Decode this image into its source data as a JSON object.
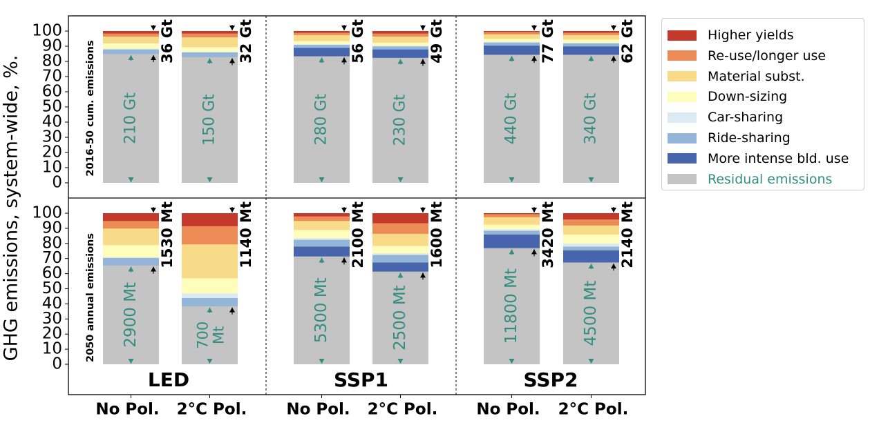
{
  "chart_data": {
    "type": "bar",
    "subtype": "stacked-bar-facets",
    "ylabel": "GHG emissions, system-wide, %.",
    "ylim": [
      0,
      100
    ],
    "yticks": [
      "0",
      "10",
      "20",
      "30",
      "40",
      "50",
      "60",
      "70",
      "80",
      "90",
      "100"
    ],
    "row_labels": [
      "2016-50 cum. emissions",
      "2050 annual emissions"
    ],
    "scenarios": [
      "LED",
      "SSP1",
      "SSP2"
    ],
    "bar_labels": [
      "No Pol.",
      "2°C Pol."
    ],
    "segments": [
      {
        "name": "More intense bld. use",
        "color": "#4665ad"
      },
      {
        "name": "Ride-sharing",
        "color": "#94b4d8"
      },
      {
        "name": "Car-sharing",
        "color": "#dbeaf3"
      },
      {
        "name": "Down-sizing",
        "color": "#fefdbc"
      },
      {
        "name": "Material subst.",
        "color": "#f8db88"
      },
      {
        "name": "Re-use/longer use",
        "color": "#ec8b56"
      },
      {
        "name": "Higher yields",
        "color": "#c33a2c"
      }
    ],
    "residual": {
      "name": "Residual emissions",
      "color": "#c4c4c4",
      "text_color": "#338d80"
    },
    "panels": [
      {
        "row": 0,
        "scenario": "LED",
        "bars": [
          {
            "label": "No Pol.",
            "residual": 85,
            "residual_label": "210 Gt",
            "reduction_label": "36 Gt",
            "segments": [
              0,
              3,
              0.5,
              3.5,
              4.5,
              2,
              1.5
            ]
          },
          {
            "label": "2°C Pol.",
            "residual": 83,
            "residual_label": "150 Gt",
            "reduction_label": "32 Gt",
            "segments": [
              0,
              3,
              0.5,
              3,
              6.5,
              2.5,
              1.5
            ]
          }
        ]
      },
      {
        "row": 0,
        "scenario": "SSP1",
        "bars": [
          {
            "label": "No Pol.",
            "residual": 83.5,
            "residual_label": "280 Gt",
            "reduction_label": "56 Gt",
            "segments": [
              5.5,
              2,
              0.5,
              2,
              4,
              1.5,
              1
            ]
          },
          {
            "label": "2°C Pol.",
            "residual": 82.5,
            "residual_label": "230 Gt",
            "reduction_label": "49 Gt",
            "segments": [
              5.5,
              2,
              0.5,
              2,
              4,
              2,
              1.5
            ]
          }
        ]
      },
      {
        "row": 0,
        "scenario": "SSP2",
        "bars": [
          {
            "label": "No Pol.",
            "residual": 84.5,
            "residual_label": "440 Gt",
            "reduction_label": "77 Gt",
            "segments": [
              6,
              2,
              0.5,
              2,
              3,
              1.5,
              0.5
            ]
          },
          {
            "label": "2°C Pol.",
            "residual": 84.5,
            "residual_label": "340 Gt",
            "reduction_label": "62 Gt",
            "segments": [
              5.5,
              2,
              0.5,
              2,
              3,
              1.5,
              1
            ]
          }
        ]
      },
      {
        "row": 1,
        "scenario": "LED",
        "bars": [
          {
            "label": "No Pol.",
            "residual": 65.5,
            "residual_label": "2900 Mt",
            "reduction_label": "1530 Mt",
            "segments": [
              0,
              5,
              0.5,
              8,
              11,
              5,
              5
            ]
          },
          {
            "label": "2°C Pol.",
            "residual": 38.5,
            "residual_label": "700 Mt",
            "reduction_label": "1140 Mt",
            "segments": [
              0,
              5.5,
              3,
              10,
              22.5,
              12,
              8.5
            ]
          }
        ]
      },
      {
        "row": 1,
        "scenario": "SSP1",
        "bars": [
          {
            "label": "No Pol.",
            "residual": 71.5,
            "residual_label": "5300 Mt",
            "reduction_label": "2100 Mt",
            "segments": [
              6.5,
              4.5,
              1,
              5.5,
              6,
              3,
              2
            ]
          },
          {
            "label": "2°C Pol.",
            "residual": 61.5,
            "residual_label": "2500 Mt",
            "reduction_label": "1600 Mt",
            "segments": [
              6,
              5,
              1,
              5,
              8,
              7,
              6.5
            ]
          }
        ]
      },
      {
        "row": 1,
        "scenario": "SSP2",
        "bars": [
          {
            "label": "No Pol.",
            "residual": 77,
            "residual_label": "11800 Mt",
            "reduction_label": "3420 Mt",
            "segments": [
              9,
              2.5,
              1,
              3,
              5,
              2,
              0.5
            ]
          },
          {
            "label": "2°C Pol.",
            "residual": 67.5,
            "residual_label": "4500 Mt",
            "reduction_label": "2140 Mt",
            "segments": [
              8,
              2.5,
              2,
              6,
              6,
              4,
              4
            ]
          }
        ]
      }
    ],
    "legend": {
      "position": "right",
      "items": [
        "Higher yields",
        "Re-use/longer use",
        "Material subst.",
        "Down-sizing",
        "Car-sharing",
        "Ride-sharing",
        "More intense bld. use",
        "Residual emissions"
      ]
    }
  }
}
